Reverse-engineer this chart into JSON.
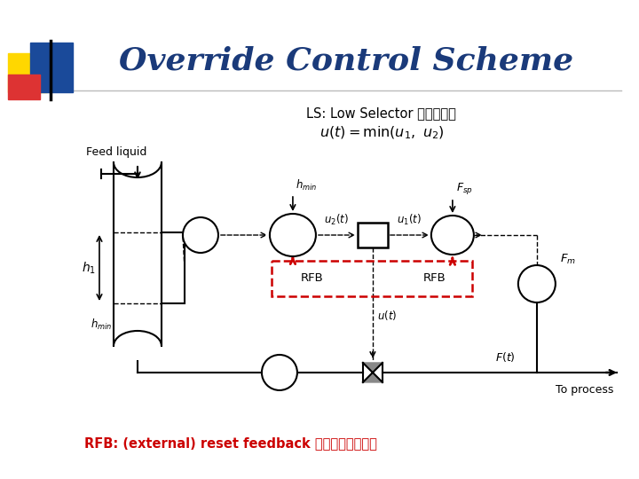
{
  "title": "Override Control Scheme",
  "title_color": "#1a3a7a",
  "title_fontsize": 26,
  "bg_color": "#ffffff",
  "ls_line1": "LS: Low Selector （低选器）",
  "rfb_text": "RFB: (external) reset feedback （外部积分反馈）",
  "rfb_color": "#cc0000",
  "deco_yellow": "#ffd700",
  "deco_blue": "#1a4a9a",
  "deco_red": "#dd3333",
  "line_color": "#333333",
  "feed_liquid": "Feed liquid",
  "to_process": "To process"
}
